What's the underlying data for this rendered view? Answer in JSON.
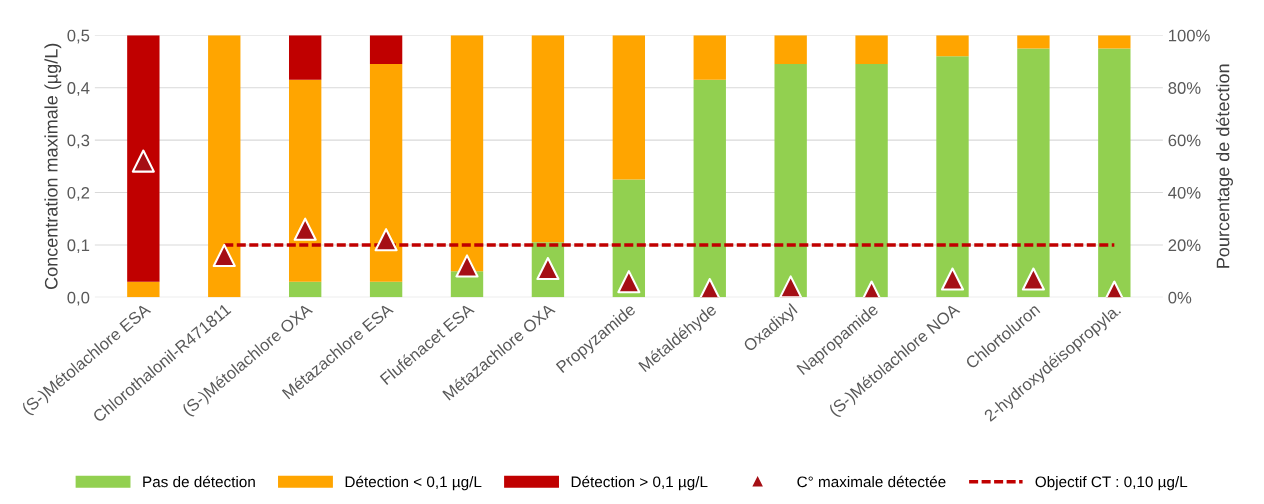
{
  "chart_data": {
    "type": "bar",
    "stacked": true,
    "ylabel": "Concentration maximale (µg/L)",
    "y2label": "Pourcentage de détection",
    "categories": [
      "(S-)Métolachlore ESA",
      "Chlorothalonil-R471811",
      "(S-)Métolachlore OXA",
      "Métazachlore ESA",
      "Flufénacet ESA",
      "Métazachlore OXA",
      "Propyzamide",
      "Métaldéhyde",
      "Oxadixyl",
      "Napropamide",
      "(S-)Métolachlore NOA",
      "Chlortoluron",
      "2-hydroxydéisopropyla."
    ],
    "series": [
      {
        "name": "Pas de détection",
        "color": "#92d050",
        "axis": "y2",
        "values": [
          0,
          0,
          6,
          6,
          10,
          21,
          45,
          83,
          89,
          89,
          92,
          95,
          95
        ]
      },
      {
        "name": "Détection < 0,1 µg/L",
        "color": "#ffa500",
        "axis": "y2",
        "values": [
          6,
          100,
          77,
          83,
          90,
          79,
          55,
          17,
          11,
          11,
          8,
          5,
          5
        ]
      },
      {
        "name": "Détection > 0,1 µg/L",
        "color": "#c00000",
        "axis": "y2",
        "values": [
          94,
          0,
          17,
          11,
          0,
          0,
          0,
          0,
          0,
          0,
          0,
          0,
          0
        ]
      },
      {
        "name": "C° maximale détectée",
        "color": "#a50f15",
        "type": "scatter",
        "axis": "y",
        "marker": "triangle",
        "values": [
          0.26,
          0.08,
          0.13,
          0.11,
          0.06,
          0.055,
          0.03,
          0.015,
          0.02,
          0.01,
          0.035,
          0.035,
          0.01
        ]
      },
      {
        "name": "Objectif CT : 0,10 µg/L",
        "color": "#c00000",
        "type": "line",
        "axis": "y",
        "line_style": "dashed",
        "values": [
          null,
          0.1,
          0.1,
          0.1,
          0.1,
          0.1,
          0.1,
          0.1,
          0.1,
          0.1,
          0.1,
          0.1,
          0.1
        ]
      }
    ],
    "ylim": [
      0,
      0.5
    ],
    "yticks": [
      {
        "value": 0,
        "label": "0,0"
      },
      {
        "value": 0.1,
        "label": "0,1"
      },
      {
        "value": 0.2,
        "label": "0,2"
      },
      {
        "value": 0.3,
        "label": "0,3"
      },
      {
        "value": 0.4,
        "label": "0,4"
      },
      {
        "value": 0.5,
        "label": "0,5"
      }
    ],
    "y2lim": [
      0,
      100
    ],
    "y2ticks": [
      {
        "value": 0,
        "label": "0%"
      },
      {
        "value": 20,
        "label": "20%"
      },
      {
        "value": 40,
        "label": "40%"
      },
      {
        "value": 60,
        "label": "60%"
      },
      {
        "value": 80,
        "label": "80%"
      },
      {
        "value": 100,
        "label": "100%"
      }
    ],
    "grid": "y",
    "legend": "bottom"
  }
}
